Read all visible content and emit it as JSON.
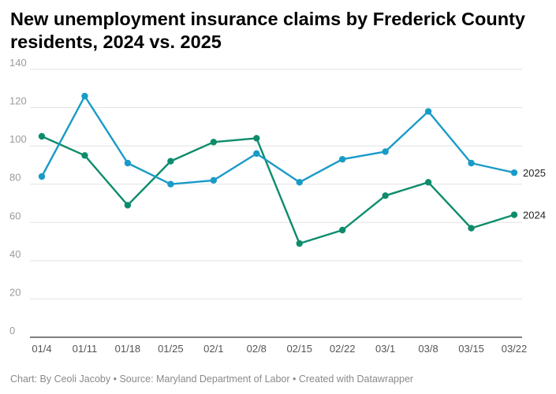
{
  "chart_data": {
    "type": "line",
    "title": "New unemployment insurance claims by Frederick County residents, 2024 vs. 2025",
    "xlabel": "",
    "ylabel": "",
    "categories": [
      "01/4",
      "01/11",
      "01/18",
      "01/25",
      "02/1",
      "02/8",
      "02/15",
      "02/22",
      "03/1",
      "03/8",
      "03/15",
      "03/22"
    ],
    "ylim": [
      0,
      140
    ],
    "yticks": [
      0,
      20,
      40,
      60,
      80,
      100,
      120,
      140
    ],
    "grid": true,
    "legend": "inline-right",
    "series": [
      {
        "name": "2025",
        "color": "#1a9bc7",
        "values": [
          84,
          126,
          91,
          80,
          82,
          96,
          81,
          93,
          97,
          118,
          91,
          86
        ]
      },
      {
        "name": "2024",
        "color": "#0d8c6c",
        "values": [
          105,
          95,
          69,
          92,
          102,
          104,
          49,
          56,
          74,
          81,
          57,
          64
        ]
      }
    ]
  },
  "footer": "Chart: By Ceoli Jacoby • Source: Maryland Department of Labor • Created with Datawrapper"
}
